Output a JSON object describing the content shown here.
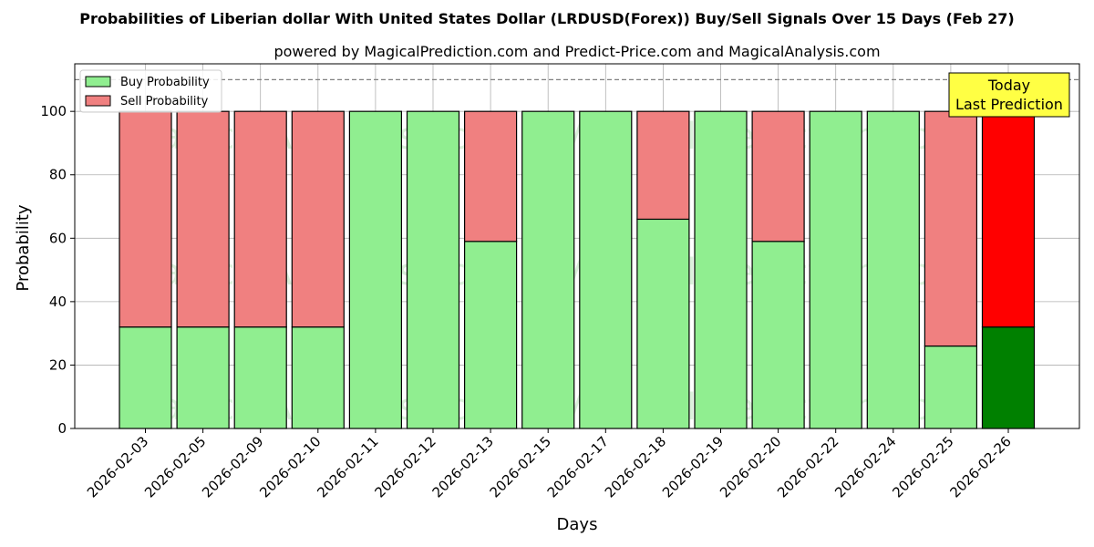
{
  "chart_data": {
    "type": "bar",
    "stacked": true,
    "title": "Probabilities of Liberian dollar With United States Dollar (LRDUSD(Forex)) Buy/Sell Signals Over 15 Days (Feb 27)",
    "subtitle": "powered by MagicalPrediction.com and Predict-Price.com and MagicalAnalysis.com",
    "xlabel": "Days",
    "ylabel": "Probability",
    "ylim": [
      0,
      115
    ],
    "yticks": [
      0,
      20,
      40,
      60,
      80,
      100
    ],
    "grid": true,
    "legend_position": "top-left",
    "reference_line": 110,
    "categories": [
      "2026-02-03",
      "2026-02-05",
      "2026-02-09",
      "2026-02-10",
      "2026-02-11",
      "2026-02-12",
      "2026-02-13",
      "2026-02-15",
      "2026-02-17",
      "2026-02-18",
      "2026-02-19",
      "2026-02-20",
      "2026-02-22",
      "2026-02-24",
      "2026-02-25",
      "2026-02-26"
    ],
    "series": [
      {
        "name": "Buy Probability",
        "color": "#90ee90",
        "highlight_color": "#008000",
        "values": [
          32,
          32,
          32,
          32,
          100,
          100,
          59,
          100,
          100,
          66,
          100,
          59,
          100,
          100,
          26,
          32
        ]
      },
      {
        "name": "Sell Probability",
        "color": "#f08080",
        "highlight_color": "#ff0000",
        "values": [
          68,
          68,
          68,
          68,
          0,
          0,
          41,
          0,
          0,
          34,
          0,
          41,
          0,
          0,
          74,
          68
        ]
      }
    ],
    "highlight_index": 15,
    "annotation": {
      "lines": [
        "Today",
        "Last Prediction"
      ],
      "color": "#ffff44"
    },
    "watermarks": [
      "MagicalAnalysis.com",
      "MagicalPrediction.com"
    ]
  }
}
